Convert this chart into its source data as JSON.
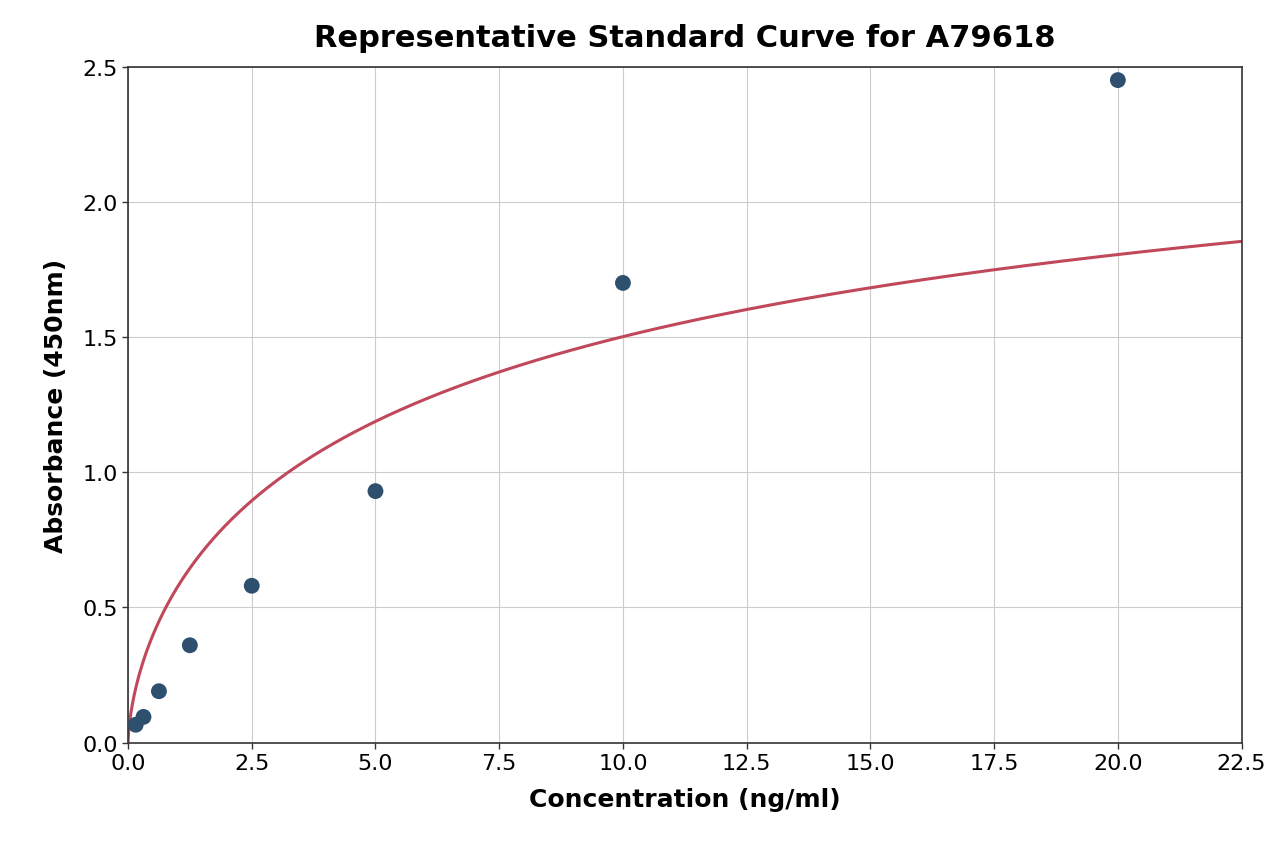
{
  "title": "Representative Standard Curve for A79618",
  "xlabel": "Concentration (ng/ml)",
  "ylabel": "Absorbance (450nm)",
  "data_x": [
    0.156,
    0.313,
    0.625,
    1.25,
    2.5,
    5.0,
    10.0,
    20.0
  ],
  "data_y": [
    0.066,
    0.095,
    0.19,
    0.36,
    0.58,
    0.93,
    1.7,
    2.45
  ],
  "xlim": [
    0,
    22.5
  ],
  "ylim": [
    0,
    2.5
  ],
  "xticks": [
    0.0,
    2.5,
    5.0,
    7.5,
    10.0,
    12.5,
    15.0,
    17.5,
    20.0,
    22.5
  ],
  "yticks": [
    0.0,
    0.5,
    1.0,
    1.5,
    2.0,
    2.5
  ],
  "dot_color": "#2e4f6e",
  "curve_color": "#c0485a",
  "background_color": "#ffffff",
  "grid_color": "#cccccc",
  "spine_color": "#333333",
  "title_fontsize": 22,
  "label_fontsize": 18,
  "tick_fontsize": 16,
  "dot_size": 130,
  "curve_linewidth": 2.2
}
